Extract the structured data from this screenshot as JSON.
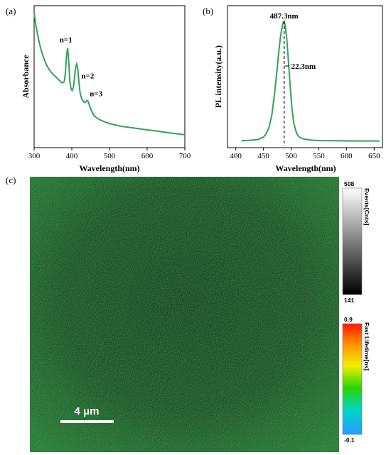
{
  "panels": {
    "a": "(a)",
    "b": "(b)",
    "c": "(c)"
  },
  "chart_data": [
    {
      "type": "line",
      "title": "",
      "xlabel": "Wavelength(nm)",
      "ylabel": "Absorbance",
      "xlim": [
        300,
        700
      ],
      "xticks": [
        300,
        400,
        500,
        600,
        700
      ],
      "color": "#2fa35a",
      "grid": false,
      "annotations": [
        {
          "text": "n=1",
          "x": 388
        },
        {
          "text": "n=2",
          "x": 418
        },
        {
          "text": "n=3",
          "x": 440
        }
      ],
      "series": [
        {
          "x": [
            300,
            302,
            305,
            310,
            315,
            320,
            325,
            330,
            335,
            340,
            345,
            350,
            355,
            360,
            365,
            370,
            375,
            380,
            383,
            386,
            389,
            392,
            395,
            398,
            401,
            404,
            407,
            410,
            413,
            416,
            419,
            422,
            425,
            428,
            431,
            434,
            437,
            440,
            443,
            446,
            449,
            452,
            455,
            458,
            461,
            465,
            470,
            480,
            490,
            500,
            510,
            520,
            530,
            540,
            550,
            560,
            570,
            580,
            590,
            600,
            610,
            620,
            630,
            640,
            650,
            660,
            670,
            680,
            690,
            700
          ],
          "y": [
            1.0,
            0.95,
            0.89,
            0.81,
            0.74,
            0.685,
            0.64,
            0.6,
            0.57,
            0.545,
            0.525,
            0.51,
            0.495,
            0.48,
            0.465,
            0.45,
            0.44,
            0.45,
            0.52,
            0.66,
            0.715,
            0.6,
            0.45,
            0.39,
            0.38,
            0.4,
            0.47,
            0.56,
            0.59,
            0.55,
            0.44,
            0.36,
            0.325,
            0.305,
            0.29,
            0.285,
            0.29,
            0.3,
            0.295,
            0.27,
            0.245,
            0.22,
            0.2,
            0.185,
            0.175,
            0.165,
            0.155,
            0.14,
            0.128,
            0.118,
            0.11,
            0.103,
            0.097,
            0.092,
            0.088,
            0.084,
            0.08,
            0.076,
            0.072,
            0.068,
            0.064,
            0.06,
            0.056,
            0.052,
            0.048,
            0.044,
            0.04,
            0.036,
            0.032,
            0.03
          ]
        }
      ]
    },
    {
      "type": "line",
      "title": "",
      "xlabel": "Wavelength(nm)",
      "ylabel": "PL intensity(a.u.)",
      "xlim": [
        385,
        665
      ],
      "xticks": [
        400,
        450,
        500,
        550,
        600,
        650
      ],
      "color": "#2fa35a",
      "grid": false,
      "peak_label": "487.3nm",
      "fwhm_label": "22.3nm",
      "peak_x": 487.3,
      "series": [
        {
          "x": [
            410,
            420,
            430,
            440,
            450,
            455,
            460,
            465,
            470,
            475,
            478,
            481,
            484,
            486,
            487.3,
            489,
            492,
            495,
            498,
            501,
            505,
            510,
            515,
            520,
            530,
            540,
            550,
            560,
            580,
            600,
            620,
            640,
            660
          ],
          "y": [
            0.01,
            0.012,
            0.015,
            0.02,
            0.04,
            0.07,
            0.12,
            0.22,
            0.4,
            0.62,
            0.76,
            0.88,
            0.96,
            0.995,
            1.0,
            0.97,
            0.86,
            0.68,
            0.48,
            0.3,
            0.15,
            0.07,
            0.04,
            0.028,
            0.018,
            0.014,
            0.012,
            0.011,
            0.01,
            0.009,
            0.008,
            0.008,
            0.008
          ]
        }
      ]
    }
  ],
  "image_panel": {
    "scalebar_label": "4 μm",
    "colorbar_gray": {
      "title": "Events[Cnts]",
      "max": "508",
      "min": "141"
    },
    "colorbar_rainbow": {
      "title": "Fast Lifetime[ns]",
      "max": "0.9",
      "min": "-0.1"
    }
  }
}
